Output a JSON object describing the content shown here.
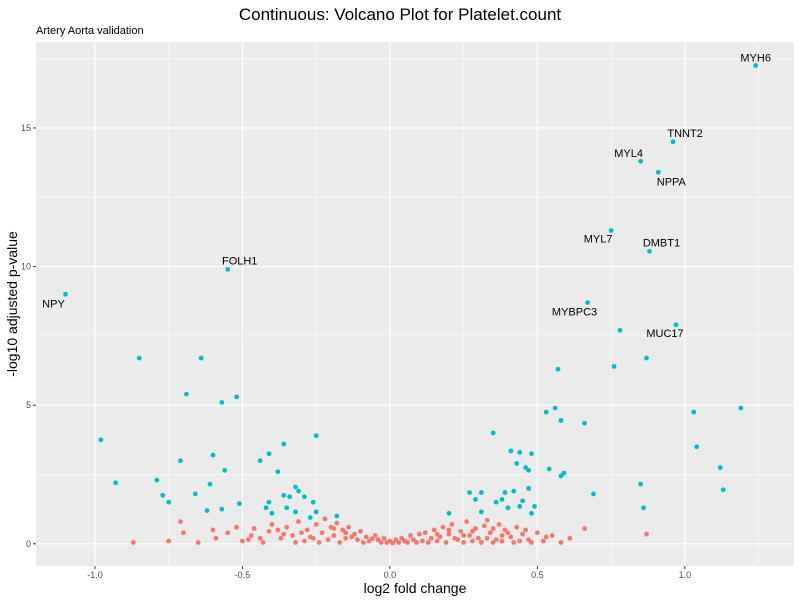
{
  "title": "Continuous: Volcano Plot for Platelet.count",
  "subtitle": "Artery Aorta validation",
  "colors": {
    "significant": "#00BFC4",
    "not_significant": "#F8766D",
    "panel": "#EBEBEB",
    "grid": "#FFFFFF"
  },
  "chart_data": {
    "type": "scatter",
    "title": "Continuous: Volcano Plot for Platelet.count",
    "subtitle": "Artery Aorta validation",
    "xlabel": "log2 fold change",
    "ylabel": "-log10 adjusted p-value",
    "xlim": [
      -1.2,
      1.37
    ],
    "ylim": [
      -0.8,
      18.1
    ],
    "x_ticks": [
      "-1.0",
      "-0.5",
      "0.0",
      "0.5",
      "1.0"
    ],
    "x_tick_values": [
      -1.0,
      -0.5,
      0.0,
      0.5,
      1.0
    ],
    "y_ticks": [
      "0",
      "5",
      "10",
      "15"
    ],
    "y_tick_values": [
      0,
      5,
      10,
      15
    ],
    "grid": true,
    "labeled_points": [
      {
        "label": "MYH6",
        "x": 1.24,
        "y": 17.25
      },
      {
        "label": "TNNT2",
        "x": 0.96,
        "y": 14.5
      },
      {
        "label": "MYL4",
        "x": 0.85,
        "y": 13.8
      },
      {
        "label": "NPPA",
        "x": 0.91,
        "y": 13.4
      },
      {
        "label": "MYL7",
        "x": 0.75,
        "y": 11.3
      },
      {
        "label": "DMBT1",
        "x": 0.88,
        "y": 10.55
      },
      {
        "label": "FOLH1",
        "x": -0.55,
        "y": 9.9
      },
      {
        "label": "NPY",
        "x": -1.1,
        "y": 9.0
      },
      {
        "label": "MYBPC3",
        "x": 0.67,
        "y": 8.7
      },
      {
        "label": "MUC17",
        "x": 0.97,
        "y": 7.9
      }
    ],
    "series": [
      {
        "name": "significant",
        "points": [
          [
            1.24,
            17.25
          ],
          [
            0.96,
            14.5
          ],
          [
            0.85,
            13.8
          ],
          [
            0.91,
            13.4
          ],
          [
            0.75,
            11.3
          ],
          [
            0.88,
            10.55
          ],
          [
            -0.55,
            9.9
          ],
          [
            -1.1,
            9.0
          ],
          [
            0.67,
            8.7
          ],
          [
            0.97,
            7.9
          ],
          [
            0.78,
            7.7
          ],
          [
            0.87,
            6.7
          ],
          [
            -0.85,
            6.7
          ],
          [
            -0.64,
            6.7
          ],
          [
            0.76,
            6.4
          ],
          [
            0.57,
            6.3
          ],
          [
            -0.69,
            5.4
          ],
          [
            -0.52,
            5.3
          ],
          [
            -0.57,
            5.1
          ],
          [
            1.19,
            4.9
          ],
          [
            0.56,
            4.9
          ],
          [
            0.53,
            4.75
          ],
          [
            1.03,
            4.75
          ],
          [
            0.58,
            4.45
          ],
          [
            0.66,
            4.35
          ],
          [
            0.35,
            4.0
          ],
          [
            -0.25,
            3.9
          ],
          [
            -0.98,
            3.75
          ],
          [
            -0.36,
            3.6
          ],
          [
            1.04,
            3.5
          ],
          [
            0.41,
            3.35
          ],
          [
            0.44,
            3.3
          ],
          [
            0.48,
            3.25
          ],
          [
            -0.41,
            3.25
          ],
          [
            -0.6,
            3.2
          ],
          [
            -0.44,
            3.0
          ],
          [
            -0.71,
            3.0
          ],
          [
            0.43,
            2.9
          ],
          [
            0.46,
            2.75
          ],
          [
            1.12,
            2.75
          ],
          [
            0.54,
            2.7
          ],
          [
            0.47,
            2.65
          ],
          [
            0.59,
            2.55
          ],
          [
            -0.56,
            2.65
          ],
          [
            -0.38,
            2.6
          ],
          [
            0.58,
            2.45
          ],
          [
            -0.79,
            2.3
          ],
          [
            -0.93,
            2.2
          ],
          [
            0.85,
            2.15
          ],
          [
            -0.61,
            2.15
          ],
          [
            -0.32,
            2.05
          ],
          [
            0.47,
            2.0
          ],
          [
            1.13,
            1.95
          ],
          [
            0.42,
            1.9
          ],
          [
            0.31,
            1.85
          ],
          [
            0.27,
            1.85
          ],
          [
            0.39,
            1.85
          ],
          [
            -0.31,
            1.9
          ],
          [
            0.69,
            1.8
          ],
          [
            -0.66,
            1.8
          ],
          [
            -0.36,
            1.75
          ],
          [
            -0.77,
            1.75
          ],
          [
            -0.29,
            1.7
          ],
          [
            -0.34,
            1.7
          ],
          [
            0.29,
            1.6
          ],
          [
            0.38,
            1.6
          ],
          [
            0.45,
            1.55
          ],
          [
            0.36,
            1.5
          ],
          [
            -0.26,
            1.5
          ],
          [
            -0.41,
            1.5
          ],
          [
            -0.75,
            1.5
          ],
          [
            -0.51,
            1.45
          ],
          [
            0.44,
            1.35
          ],
          [
            0.49,
            1.35
          ],
          [
            0.4,
            1.3
          ],
          [
            0.86,
            1.3
          ],
          [
            -0.42,
            1.3
          ],
          [
            -0.35,
            1.3
          ],
          [
            -0.57,
            1.25
          ],
          [
            -0.62,
            1.2
          ],
          [
            0.31,
            1.15
          ],
          [
            0.2,
            1.1
          ],
          [
            0.48,
            1.1
          ],
          [
            -0.25,
            1.15
          ],
          [
            -0.32,
            1.15
          ],
          [
            -0.4,
            1.1
          ],
          [
            -0.27,
            0.95
          ],
          [
            -0.18,
            1.0
          ]
        ]
      },
      {
        "name": "not significant",
        "points": [
          [
            -0.87,
            0.05
          ],
          [
            -0.75,
            0.1
          ],
          [
            -0.7,
            0.4
          ],
          [
            -0.71,
            0.8
          ],
          [
            -0.59,
            0.2
          ],
          [
            -0.52,
            0.6
          ],
          [
            -0.55,
            0.4
          ],
          [
            -0.5,
            0.1
          ],
          [
            -0.47,
            0.3
          ],
          [
            -0.46,
            0.55
          ],
          [
            -0.41,
            0.45
          ],
          [
            -0.37,
            0.2
          ],
          [
            -0.35,
            0.6
          ],
          [
            -0.33,
            0.3
          ],
          [
            -0.31,
            0.8
          ],
          [
            -0.28,
            0.5
          ],
          [
            -0.26,
            0.2
          ],
          [
            -0.25,
            0.7
          ],
          [
            -0.23,
            0.4
          ],
          [
            -0.22,
            0.9
          ],
          [
            -0.2,
            0.6
          ],
          [
            -0.19,
            0.3
          ],
          [
            -0.18,
            0.75
          ],
          [
            -0.16,
            0.5
          ],
          [
            -0.15,
            0.2
          ],
          [
            -0.14,
            0.6
          ],
          [
            -0.12,
            0.35
          ],
          [
            -0.11,
            0.15
          ],
          [
            -0.1,
            0.45
          ],
          [
            -0.08,
            0.25
          ],
          [
            -0.07,
            0.1
          ],
          [
            -0.05,
            0.3
          ],
          [
            -0.04,
            0.15
          ],
          [
            -0.03,
            0.05
          ],
          [
            -0.02,
            0.2
          ],
          [
            -0.01,
            0.05
          ],
          [
            0.0,
            0.1
          ],
          [
            0.01,
            0.03
          ],
          [
            0.02,
            0.15
          ],
          [
            0.03,
            0.05
          ],
          [
            0.04,
            0.2
          ],
          [
            0.05,
            0.1
          ],
          [
            0.07,
            0.3
          ],
          [
            0.08,
            0.15
          ],
          [
            0.1,
            0.35
          ],
          [
            0.11,
            0.1
          ],
          [
            0.12,
            0.4
          ],
          [
            0.14,
            0.2
          ],
          [
            0.15,
            0.5
          ],
          [
            0.17,
            0.25
          ],
          [
            0.18,
            0.6
          ],
          [
            0.2,
            0.35
          ],
          [
            0.21,
            0.7
          ],
          [
            0.23,
            0.15
          ],
          [
            0.24,
            0.45
          ],
          [
            0.26,
            0.8
          ],
          [
            0.27,
            0.3
          ],
          [
            0.29,
            0.55
          ],
          [
            0.3,
            0.2
          ],
          [
            0.32,
            0.65
          ],
          [
            0.34,
            0.4
          ],
          [
            0.36,
            0.15
          ],
          [
            0.37,
            0.7
          ],
          [
            0.39,
            0.5
          ],
          [
            0.41,
            0.25
          ],
          [
            0.43,
            0.6
          ],
          [
            0.45,
            0.35
          ],
          [
            0.47,
            0.15
          ],
          [
            0.5,
            0.4
          ],
          [
            0.52,
            0.1
          ],
          [
            0.55,
            0.3
          ],
          [
            0.58,
            0.05
          ],
          [
            0.61,
            0.2
          ],
          [
            0.66,
            0.55
          ],
          [
            0.87,
            0.35
          ],
          [
            -0.65,
            0.05
          ],
          [
            -0.6,
            0.5
          ],
          [
            -0.43,
            0.05
          ],
          [
            -0.38,
            0.5
          ],
          [
            -0.29,
            0.1
          ],
          [
            -0.21,
            0.15
          ],
          [
            -0.17,
            0.05
          ],
          [
            -0.13,
            0.25
          ],
          [
            -0.09,
            0.05
          ],
          [
            -0.06,
            0.18
          ],
          [
            0.06,
            0.05
          ],
          [
            0.09,
            0.05
          ],
          [
            0.13,
            0.05
          ],
          [
            0.16,
            0.1
          ],
          [
            0.19,
            0.05
          ],
          [
            0.22,
            0.2
          ],
          [
            0.25,
            0.05
          ],
          [
            0.28,
            0.1
          ],
          [
            0.31,
            0.05
          ],
          [
            0.33,
            0.2
          ],
          [
            0.35,
            0.05
          ],
          [
            0.38,
            0.1
          ],
          [
            0.42,
            0.05
          ],
          [
            0.44,
            0.1
          ],
          [
            0.48,
            0.05
          ],
          [
            -0.44,
            0.2
          ],
          [
            -0.32,
            0.05
          ],
          [
            -0.24,
            0.05
          ],
          [
            -0.3,
            0.4
          ],
          [
            -0.27,
            0.25
          ],
          [
            -0.19,
            0.55
          ],
          [
            -0.15,
            0.4
          ],
          [
            0.16,
            0.35
          ],
          [
            0.2,
            0.5
          ],
          [
            0.25,
            0.3
          ],
          [
            0.28,
            0.45
          ],
          [
            0.35,
            0.55
          ],
          [
            0.4,
            0.4
          ],
          [
            0.46,
            0.5
          ],
          [
            -0.36,
            0.35
          ],
          [
            -0.4,
            0.7
          ],
          [
            0.33,
            0.85
          ],
          [
            0.38,
            0.3
          ],
          [
            -0.48,
            0.15
          ],
          [
            0.53,
            0.25
          ]
        ]
      }
    ]
  }
}
